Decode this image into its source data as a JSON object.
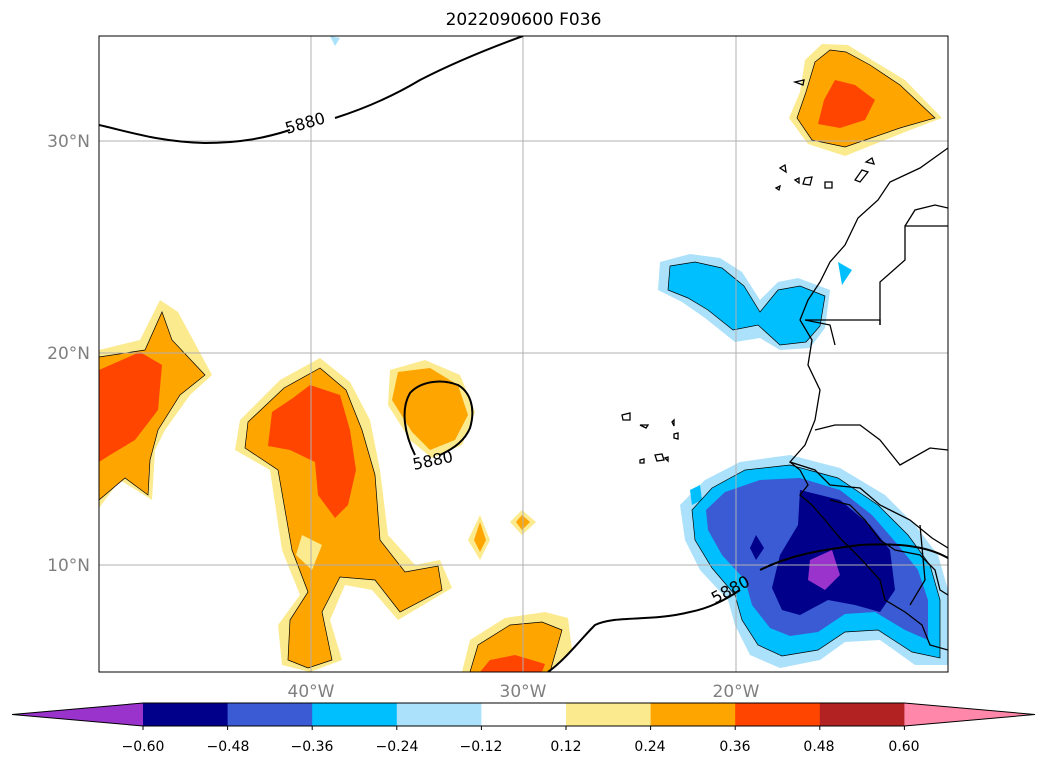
{
  "title": "2022090600 F036",
  "map": {
    "lon_ticks": [
      "40°W",
      "30°W",
      "20°W"
    ],
    "lat_ticks": [
      "30°N",
      "20°N",
      "10°N"
    ],
    "contour_labels": [
      "5880",
      "5880",
      "5880"
    ],
    "contour_value": 5880,
    "extent": {
      "lon": [
        -50,
        -10
      ],
      "lat": [
        5,
        35
      ]
    }
  },
  "colorbar": {
    "ticks": [
      "−0.60",
      "−0.48",
      "−0.36",
      "−0.24",
      "−0.12",
      "0.12",
      "0.24",
      "0.36",
      "0.48",
      "0.60"
    ],
    "colors": [
      "#9933cc",
      "#00008b",
      "#3a5bd4",
      "#00bfff",
      "#abe1fa",
      "#ffffff",
      "#fcea8f",
      "#ffa500",
      "#ff4500",
      "#b22222",
      "#ff88aa"
    ],
    "extend": "both"
  }
}
